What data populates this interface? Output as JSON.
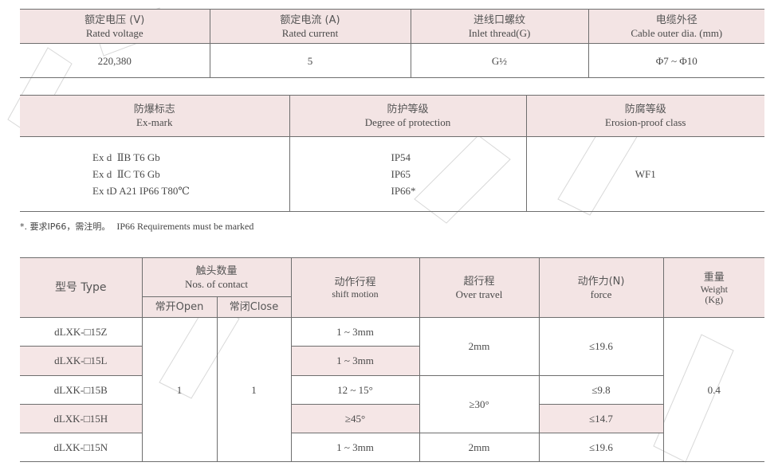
{
  "table1": {
    "headers": [
      {
        "zh": "额定电压 (V)",
        "en": "Rated voltage"
      },
      {
        "zh": "额定电流 (A)",
        "en": "Rated current"
      },
      {
        "zh": "进线口螺纹",
        "en": "Inlet thread(G)"
      },
      {
        "zh": "电缆外径",
        "en": "Cable outer dia. (mm)"
      }
    ],
    "values": [
      "220,380",
      "5",
      "G½",
      "Φ7 ~ Φ10"
    ]
  },
  "table2": {
    "headers": [
      {
        "zh": "防爆标志",
        "en": "Ex-mark"
      },
      {
        "zh": "防护等级",
        "en": "Degree of protection"
      },
      {
        "zh": "防腐等级",
        "en": "Erosion-proof class"
      }
    ],
    "ex_marks": [
      "Ex d  ⅡB T6 Gb",
      "Ex d  ⅡC T6 Gb",
      "Ex tD A21 IP66 T80℃"
    ],
    "protection": [
      "IP54",
      "IP65",
      "IP66*"
    ],
    "erosion": "WF1"
  },
  "footnote": {
    "zh": "*. 要求IP66，需注明。",
    "en": "IP66 Requirements must be marked"
  },
  "table3": {
    "headers": {
      "type": "型号 Type",
      "contacts": {
        "zh": "触头数量",
        "en": "Nos. of contact",
        "open": "常开Open",
        "close": "常闭Close"
      },
      "shift": {
        "zh": "动作行程",
        "en": "shift motion"
      },
      "over": {
        "zh": "超行程",
        "en": "Over travel"
      },
      "force": {
        "zh": "动作力(N)",
        "en": "force"
      },
      "weight": {
        "zh": "重量",
        "en": "Weight",
        "unit": "(Kg)"
      }
    },
    "types": [
      "dLXK-□15Z",
      "dLXK-□15L",
      "dLXK-□15B",
      "dLXK-□15H",
      "dLXK-□15N"
    ],
    "open": "1",
    "close": "1",
    "shift": [
      "1 ~ 3mm",
      "1 ~ 3mm",
      "12 ~ 15°",
      "≥45°",
      "1 ~ 3mm"
    ],
    "over": [
      "2mm",
      "≥30°",
      "2mm"
    ],
    "force": [
      "≤19.6",
      "≤9.8",
      "≤14.7",
      "≤19.6"
    ],
    "weight": "0.4"
  },
  "colors": {
    "header_bg": "#f3e4e4",
    "row_highlight": "#f5e6e6",
    "border": "#6e6e6e"
  }
}
